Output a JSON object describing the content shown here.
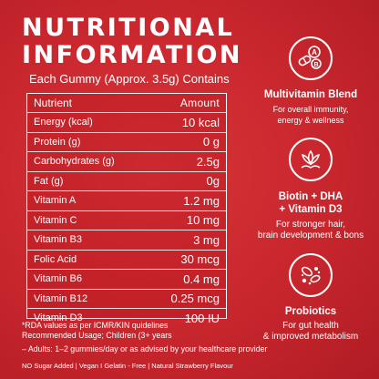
{
  "header": {
    "title_line1": "NUTRITIONAL",
    "title_line2": "INFORMATION",
    "subtitle": "Each Gummy (Approx. 3.5g) Contains"
  },
  "table": {
    "headers": {
      "nutrient": "Nutrient",
      "amount": "Amount"
    },
    "rows": [
      {
        "name": "Energy (kcal)",
        "value": "10 kcal"
      },
      {
        "name": "Protein (g)",
        "value": "0 g"
      },
      {
        "name": "Carbohydrates (g)",
        "value": "2.5g"
      },
      {
        "name": "Fat (g)",
        "value": "0g"
      },
      {
        "name": "Vitamin A",
        "value": "1.2 mg"
      },
      {
        "name": "Vitamin C",
        "value": "10 mg"
      },
      {
        "name": "Vitamin B3",
        "value": "3 mg"
      },
      {
        "name": "Folic Acid",
        "value": "30 mcg"
      },
      {
        "name": "Vitamin B6",
        "value": "0.4 mg"
      },
      {
        "name": "Vitamin B12",
        "value": "0.25 mcg"
      },
      {
        "name": "Vitamin D3",
        "value": "100 IU"
      }
    ]
  },
  "notes": {
    "rda": "*RDA values as per ICMR/KIN quidelines",
    "usage": "Recommended Usage; Children (3+ years",
    "adults": "– Adults: 1–2 gummies/day or as advised by your healthcare provider",
    "flags": "NO Sugar Added | Vegan I Gelatin - Free | Natural Strawberry Flavour"
  },
  "features": [
    {
      "icon": "pills-vitamins-icon",
      "title": "Multivitamin Blend",
      "desc_line1": "For overall immunity,",
      "desc_line2": "energy & wellness"
    },
    {
      "icon": "hair-lotus-icon",
      "title_line1": "Biotin + DHA",
      "title_line2": "+ Vitamin D3",
      "desc_line1": "For stronger hair,",
      "desc_line2": "brain development & bons"
    },
    {
      "icon": "bacteria-icon",
      "title": "Probiotics",
      "desc_line1": "For gut health",
      "desc_line2": "& improved metabolism"
    }
  ],
  "colors": {
    "background": "#c8262d",
    "text": "#ffffff"
  }
}
